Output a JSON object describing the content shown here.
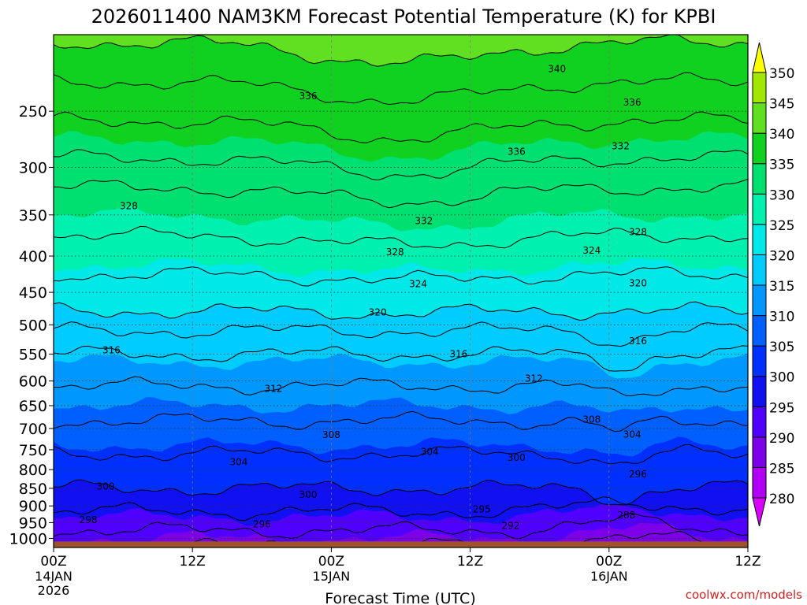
{
  "chart_data": {
    "type": "heatmap",
    "title": "2026011400 NAM3KM Forecast Potential Temperature (K) for KPBI",
    "xlabel": "Forecast Time (UTC)",
    "ylabel": "",
    "credit": "coolwx.com/models",
    "x_ticks": [
      {
        "hours": 0,
        "label": "00Z",
        "sub1": "14JAN",
        "sub2": "2026"
      },
      {
        "hours": 12,
        "label": "12Z",
        "sub1": "",
        "sub2": ""
      },
      {
        "hours": 24,
        "label": "00Z",
        "sub1": "15JAN",
        "sub2": ""
      },
      {
        "hours": 36,
        "label": "12Z",
        "sub1": "",
        "sub2": ""
      },
      {
        "hours": 48,
        "label": "00Z",
        "sub1": "16JAN",
        "sub2": ""
      },
      {
        "hours": 60,
        "label": "12Z",
        "sub1": "",
        "sub2": ""
      }
    ],
    "x_range_hours": [
      0,
      60
    ],
    "y_range_hPa": [
      1030,
      195
    ],
    "y_ticks": [
      250,
      300,
      350,
      400,
      450,
      500,
      550,
      600,
      650,
      700,
      750,
      800,
      850,
      900,
      950,
      1000
    ],
    "surface_pressure_hPa": 1010,
    "colorbar_levels": [
      280,
      285,
      290,
      295,
      300,
      305,
      310,
      315,
      320,
      325,
      330,
      335,
      340,
      345,
      350
    ],
    "colorbar_colors": [
      "#d800ff",
      "#b000f5",
      "#7c00e8",
      "#5000ff",
      "#1010f0",
      "#0030ff",
      "#0060ff",
      "#0098ff",
      "#00ccff",
      "#00e8e8",
      "#00f0b0",
      "#00e070",
      "#10d020",
      "#60e020",
      "#a0e800",
      "#d8f000",
      "#ffff00"
    ],
    "contour_levels_K": [
      288,
      292,
      296,
      300,
      304,
      308,
      312,
      316,
      320,
      324,
      328,
      332,
      336,
      340
    ],
    "profile": [
      {
        "p": 1000,
        "theta": 290
      },
      {
        "p": 950,
        "theta": 294
      },
      {
        "p": 900,
        "theta": 297
      },
      {
        "p": 850,
        "theta": 300
      },
      {
        "p": 800,
        "theta": 302
      },
      {
        "p": 750,
        "theta": 304.5
      },
      {
        "p": 700,
        "theta": 307
      },
      {
        "p": 650,
        "theta": 310
      },
      {
        "p": 600,
        "theta": 312.5
      },
      {
        "p": 550,
        "theta": 316
      },
      {
        "p": 500,
        "theta": 318.5
      },
      {
        "p": 450,
        "theta": 322
      },
      {
        "p": 400,
        "theta": 326
      },
      {
        "p": 350,
        "theta": 330
      },
      {
        "p": 300,
        "theta": 333.5
      },
      {
        "p": 250,
        "theta": 336.5
      },
      {
        "p": 200,
        "theta": 340
      }
    ],
    "contour_labels": [
      {
        "text": "336",
        "hours": 22,
        "p": 238
      },
      {
        "text": "340",
        "hours": 43.5,
        "p": 218
      },
      {
        "text": "336",
        "hours": 50,
        "p": 243
      },
      {
        "text": "336",
        "hours": 40,
        "p": 285
      },
      {
        "text": "332",
        "hours": 49,
        "p": 280
      },
      {
        "text": "328",
        "hours": 6.5,
        "p": 340
      },
      {
        "text": "332",
        "hours": 32,
        "p": 357
      },
      {
        "text": "328",
        "hours": 29.5,
        "p": 395
      },
      {
        "text": "328",
        "hours": 50.5,
        "p": 370
      },
      {
        "text": "324",
        "hours": 46.5,
        "p": 393
      },
      {
        "text": "324",
        "hours": 31.5,
        "p": 438
      },
      {
        "text": "320",
        "hours": 28,
        "p": 480
      },
      {
        "text": "320",
        "hours": 50.5,
        "p": 437
      },
      {
        "text": "316",
        "hours": 5,
        "p": 543
      },
      {
        "text": "316",
        "hours": 35,
        "p": 550
      },
      {
        "text": "316",
        "hours": 50.5,
        "p": 527
      },
      {
        "text": "312",
        "hours": 41.5,
        "p": 595
      },
      {
        "text": "312",
        "hours": 19,
        "p": 615
      },
      {
        "text": "308",
        "hours": 46.5,
        "p": 680
      },
      {
        "text": "308",
        "hours": 24,
        "p": 715
      },
      {
        "text": "304",
        "hours": 50,
        "p": 714
      },
      {
        "text": "304",
        "hours": 32.5,
        "p": 755
      },
      {
        "text": "304",
        "hours": 16,
        "p": 780
      },
      {
        "text": "300",
        "hours": 40,
        "p": 770
      },
      {
        "text": "296",
        "hours": 50.5,
        "p": 812
      },
      {
        "text": "300",
        "hours": 4.5,
        "p": 845
      },
      {
        "text": "300",
        "hours": 22,
        "p": 868
      },
      {
        "text": "295",
        "hours": 37,
        "p": 910
      },
      {
        "text": "292",
        "hours": 39.5,
        "p": 960
      },
      {
        "text": "288",
        "hours": 49.5,
        "p": 927
      },
      {
        "text": "298",
        "hours": 3,
        "p": 942
      },
      {
        "text": "296",
        "hours": 18,
        "p": 955
      }
    ]
  }
}
